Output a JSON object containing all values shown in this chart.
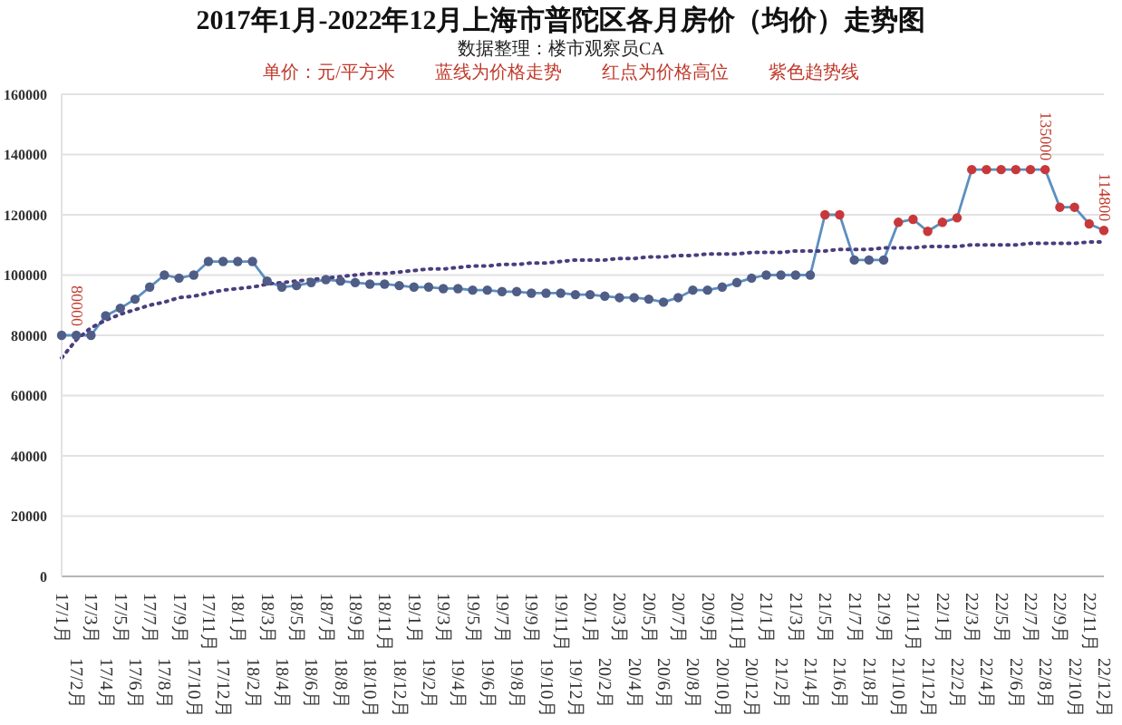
{
  "chart_data": {
    "type": "line",
    "title": "2017年1月-2022年12月上海市普陀区各月房价（均价）走势图",
    "subtitle": "数据整理：楼市观察员CA",
    "annotations": [
      "单价：元/平方米",
      "蓝线为价格走势",
      "红点为价格高位",
      "紫色趋势线"
    ],
    "categories": [
      "17/1月",
      "17/2月",
      "17/3月",
      "17/4月",
      "17/5月",
      "17/6月",
      "17/7月",
      "17/8月",
      "17/9月",
      "17/10月",
      "17/11月",
      "17/12月",
      "18/1月",
      "18/2月",
      "18/3月",
      "18/4月",
      "18/5月",
      "18/6月",
      "18/7月",
      "18/8月",
      "18/9月",
      "18/10月",
      "18/11月",
      "18/12月",
      "19/1月",
      "19/2月",
      "19/3月",
      "19/4月",
      "19/5月",
      "19/6月",
      "19/7月",
      "19/8月",
      "19/9月",
      "19/10月",
      "19/11月",
      "19/12月",
      "20/1月",
      "20/2月",
      "20/3月",
      "20/4月",
      "20/5月",
      "20/6月",
      "20/7月",
      "20/8月",
      "20/9月",
      "20/10月",
      "20/11月",
      "20/12月",
      "21/1月",
      "21/2月",
      "21/3月",
      "21/4月",
      "21/5月",
      "21/6月",
      "21/7月",
      "21/8月",
      "21/9月",
      "21/10月",
      "21/11月",
      "21/12月",
      "22/1月",
      "22/2月",
      "22/3月",
      "22/4月",
      "22/5月",
      "22/6月",
      "22/7月",
      "22/8月",
      "22/9月",
      "22/10月",
      "22/11月",
      "22/12月"
    ],
    "series": [
      {
        "color": "#5b8fc0",
        "marker": "circle",
        "line_style": "solid",
        "colors": [
          "#4f5d87",
          "#4f5d87",
          "#4f5d87",
          "#4f5d87",
          "#4f5d87",
          "#4f5d87",
          "#4f5d87",
          "#4f5d87",
          "#4f5d87",
          "#4f5d87",
          "#4f5d87",
          "#4f5d87",
          "#4f5d87",
          "#4f5d87",
          "#4f5d87",
          "#4f5d87",
          "#4f5d87",
          "#4f5d87",
          "#4f5d87",
          "#4f5d87",
          "#4f5d87",
          "#4f5d87",
          "#4f5d87",
          "#4f5d87",
          "#4f5d87",
          "#4f5d87",
          "#4f5d87",
          "#4f5d87",
          "#4f5d87",
          "#4f5d87",
          "#4f5d87",
          "#4f5d87",
          "#4f5d87",
          "#4f5d87",
          "#4f5d87",
          "#4f5d87",
          "#4f5d87",
          "#4f5d87",
          "#4f5d87",
          "#4f5d87",
          "#4f5d87",
          "#4f5d87",
          "#4f5d87",
          "#4f5d87",
          "#4f5d87",
          "#4f5d87",
          "#4f5d87",
          "#4f5d87",
          "#4f5d87",
          "#4f5d87",
          "#4f5d87",
          "#4f5d87",
          "#c8383a",
          "#c8383a",
          "#4f5d87",
          "#4f5d87",
          "#4f5d87",
          "#c8383a",
          "#c8383a",
          "#c8383a",
          "#c8383a",
          "#c8383a",
          "#c8383a",
          "#c8383a",
          "#c8383a",
          "#c8383a",
          "#c8383a",
          "#c8383a",
          "#c8383a",
          "#c8383a",
          "#c8383a",
          "#c8383a"
        ],
        "values": [
          80000,
          80000,
          80000,
          86500,
          89000,
          92000,
          96000,
          100000,
          99000,
          100000,
          104500,
          104500,
          104500,
          104500,
          98000,
          96000,
          96500,
          97500,
          98500,
          98000,
          97500,
          97000,
          97000,
          96500,
          96000,
          96000,
          95500,
          95500,
          95000,
          95000,
          94500,
          94500,
          94000,
          94000,
          94000,
          93500,
          93500,
          93000,
          92500,
          92500,
          92000,
          91000,
          92500,
          95000,
          95000,
          96000,
          97500,
          99000,
          100000,
          100000,
          100000,
          100000,
          120000,
          120000,
          105000,
          105000,
          105000,
          117500,
          118500,
          114500,
          117500,
          119000,
          135000,
          135000,
          135000,
          135000,
          135000,
          135000,
          122500,
          122500,
          117000,
          114800
        ],
        "value_labels": [
          null,
          "80000",
          null,
          null,
          null,
          null,
          null,
          null,
          null,
          null,
          null,
          null,
          null,
          null,
          null,
          null,
          null,
          null,
          null,
          null,
          null,
          null,
          null,
          null,
          null,
          null,
          null,
          null,
          null,
          null,
          null,
          null,
          null,
          null,
          null,
          null,
          null,
          null,
          null,
          null,
          null,
          null,
          null,
          null,
          null,
          null,
          null,
          null,
          null,
          null,
          null,
          null,
          null,
          null,
          null,
          null,
          null,
          null,
          null,
          null,
          null,
          null,
          null,
          null,
          null,
          null,
          null,
          "135000",
          null,
          null,
          null,
          "114800"
        ]
      },
      {
        "color": "#4b3d7e",
        "marker": "none",
        "line_style": "dotted",
        "values": [
          72500,
          78500,
          82500,
          85000,
          87000,
          88500,
          90000,
          91000,
          92500,
          93000,
          94000,
          95000,
          95500,
          96000,
          97000,
          97500,
          98000,
          98500,
          99000,
          99500,
          100000,
          100500,
          100500,
          101000,
          101500,
          102000,
          102000,
          102500,
          103000,
          103000,
          103500,
          103500,
          104000,
          104000,
          104500,
          105000,
          105000,
          105000,
          105500,
          105500,
          106000,
          106000,
          106500,
          106500,
          107000,
          107000,
          107000,
          107500,
          107500,
          107500,
          108000,
          108000,
          108000,
          108500,
          108500,
          108500,
          109000,
          109000,
          109000,
          109500,
          109500,
          109500,
          110000,
          110000,
          110000,
          110000,
          110500,
          110500,
          110500,
          110500,
          111000,
          111000
        ]
      }
    ],
    "ylim": [
      0,
      160000
    ],
    "yticks": [
      0,
      20000,
      40000,
      60000,
      80000,
      100000,
      120000,
      140000,
      160000
    ],
    "grid": "y"
  }
}
